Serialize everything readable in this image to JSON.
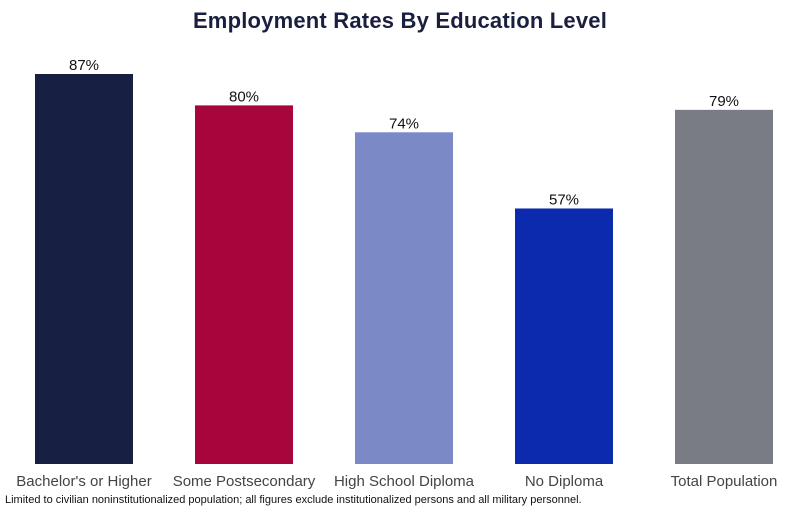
{
  "chart_data": {
    "type": "bar",
    "title": "Employment Rates By Education Level",
    "categories": [
      "Bachelor's or Higher",
      "Some Postsecondary",
      "High School Diploma",
      "No Diploma",
      "Total Population"
    ],
    "values": [
      87,
      80,
      74,
      57,
      79
    ],
    "value_labels": [
      "87%",
      "80%",
      "74%",
      "57%",
      "79%"
    ],
    "colors": [
      "#171f42",
      "#a6063b",
      "#7b8ac6",
      "#0c2aad",
      "#797c85"
    ],
    "xlabel": "",
    "ylabel": "",
    "ylim": [
      0,
      87
    ],
    "grid": false,
    "legend": "none"
  },
  "footnote": "Limited to civilian noninstitutionalized population; all figures exclude institutionalized persons and all military personnel."
}
